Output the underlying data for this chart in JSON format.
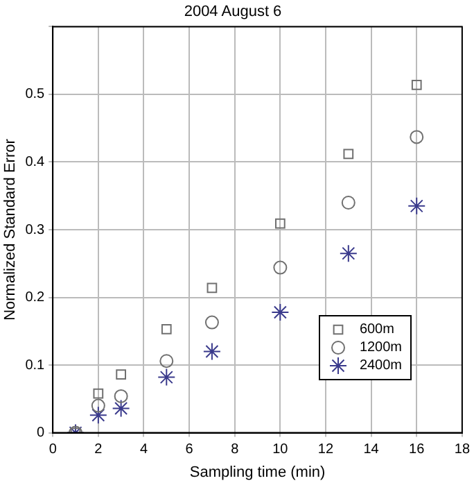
{
  "chart_data": {
    "type": "scatter",
    "title": "2004 August 6",
    "xlabel": "Sampling time (min)",
    "ylabel": "Normalized Standard Error",
    "x": [
      1,
      2,
      3,
      5,
      7,
      10,
      13,
      16
    ],
    "series": [
      {
        "name": "600m",
        "color": "#707070",
        "marker": "square",
        "values": [
          0,
          0.058,
          0.086,
          0.153,
          0.214,
          0.309,
          0.412,
          0.514
        ]
      },
      {
        "name": "1200m",
        "color": "#707070",
        "marker": "circle",
        "values": [
          0,
          0.04,
          0.054,
          0.106,
          0.163,
          0.244,
          0.34,
          0.437
        ]
      },
      {
        "name": "2400m",
        "color": "#3a3a8c",
        "marker": "cross",
        "values": [
          0,
          0.026,
          0.036,
          0.082,
          0.12,
          0.178,
          0.265,
          0.335
        ]
      }
    ],
    "xlim": [
      0,
      18
    ],
    "xticks": [
      0,
      2,
      4,
      6,
      8,
      10,
      12,
      14,
      16,
      18
    ],
    "ylim": [
      0,
      0.6
    ],
    "yticks": [
      0,
      0.1,
      0.2,
      0.3,
      0.4,
      0.5,
      {
        "value": 0.6,
        "label": null
      }
    ],
    "grid": true,
    "legend": "bottom right"
  }
}
